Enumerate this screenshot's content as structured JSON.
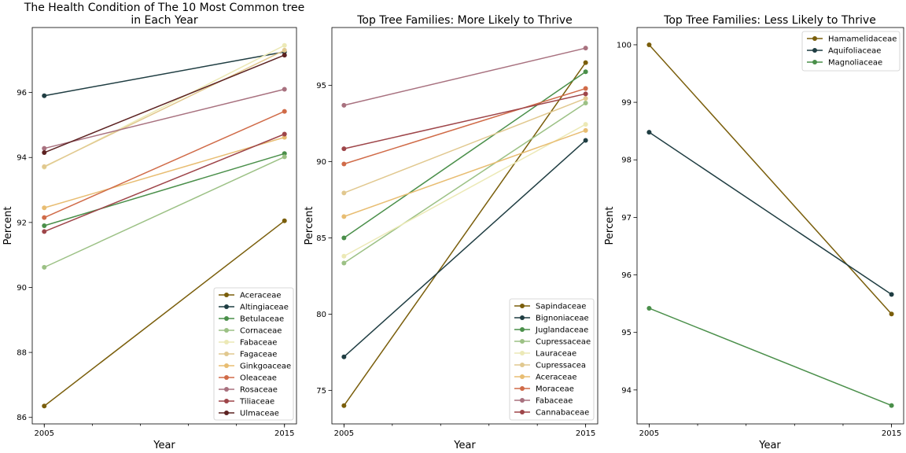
{
  "chart_data": [
    {
      "type": "line",
      "title": "The Health Condition of The 10 Most Common tree\nin Each Year",
      "xlabel": "Year",
      "ylabel": "Percent",
      "x": [
        2005,
        2015
      ],
      "xlim": [
        2004.5,
        2015.5
      ],
      "ylim": [
        85.8,
        98.0
      ],
      "yticks": [
        86,
        88,
        90,
        92,
        94,
        96
      ],
      "legend_loc": "lower-right",
      "series": [
        {
          "name": "Aceraceae",
          "color": "#7a5e0b",
          "values": [
            86.35,
            92.05
          ]
        },
        {
          "name": "Altingiaceae",
          "color": "#1f3d42",
          "values": [
            95.9,
            97.25
          ]
        },
        {
          "name": "Betulaceae",
          "color": "#4a8f4a",
          "values": [
            91.9,
            94.12
          ]
        },
        {
          "name": "Cornaceae",
          "color": "#9cc185",
          "values": [
            90.62,
            94.02
          ]
        },
        {
          "name": "Fabaceae",
          "color": "#ece9b6",
          "values": [
            93.7,
            97.45
          ]
        },
        {
          "name": "Fagaceae",
          "color": "#e1c88f",
          "values": [
            93.72,
            97.3
          ]
        },
        {
          "name": "Ginkgoaceae",
          "color": "#e8bd72",
          "values": [
            92.45,
            94.62
          ]
        },
        {
          "name": "Oleaceae",
          "color": "#d06b48",
          "values": [
            92.15,
            95.42
          ]
        },
        {
          "name": "Rosaceae",
          "color": "#a8717f",
          "values": [
            94.28,
            96.1
          ]
        },
        {
          "name": "Tiliaceae",
          "color": "#9e4549",
          "values": [
            91.72,
            94.72
          ]
        },
        {
          "name": "Ulmaceae",
          "color": "#5c2221",
          "values": [
            94.15,
            97.15
          ]
        }
      ]
    },
    {
      "type": "line",
      "title": "Top Tree Families: More Likely to Thrive",
      "xlabel": "Year",
      "ylabel": "Percent",
      "x": [
        2005,
        2015
      ],
      "xlim": [
        2004.5,
        2015.5
      ],
      "ylim": [
        72.8,
        98.8
      ],
      "yticks": [
        75,
        80,
        85,
        90,
        95
      ],
      "legend_loc": "lower-right",
      "series": [
        {
          "name": "Sapindaceae",
          "color": "#7a5e0b",
          "values": [
            74.0,
            96.5
          ]
        },
        {
          "name": "Bignoniaceae",
          "color": "#1f3d42",
          "values": [
            77.2,
            91.4
          ]
        },
        {
          "name": "Juglandaceae",
          "color": "#4a8f4a",
          "values": [
            85.0,
            95.9
          ]
        },
        {
          "name": "Cupressaceae",
          "color": "#9cc185",
          "values": [
            83.35,
            93.85
          ]
        },
        {
          "name": "Lauraceae",
          "color": "#ece9b6",
          "values": [
            83.8,
            92.45
          ]
        },
        {
          "name": "Cupressacea",
          "color": "#e1c88f",
          "values": [
            87.95,
            94.15
          ]
        },
        {
          "name": "Aceraceae",
          "color": "#e8bd72",
          "values": [
            86.4,
            92.05
          ]
        },
        {
          "name": "Moraceae",
          "color": "#d06b48",
          "values": [
            89.85,
            94.8
          ]
        },
        {
          "name": "Fabaceae",
          "color": "#a8717f",
          "values": [
            93.7,
            97.45
          ]
        },
        {
          "name": "Cannabaceae",
          "color": "#9e4549",
          "values": [
            90.85,
            94.45
          ]
        }
      ]
    },
    {
      "type": "line",
      "title": "Top Tree Families: Less Likely to Thrive",
      "xlabel": "Year",
      "ylabel": "Percent",
      "x": [
        2005,
        2015
      ],
      "xlim": [
        2004.5,
        2015.5
      ],
      "ylim": [
        93.41,
        100.3
      ],
      "yticks": [
        94,
        95,
        96,
        97,
        98,
        99,
        100
      ],
      "legend_loc": "upper-right",
      "series": [
        {
          "name": "Hamamelidaceae",
          "color": "#7a5e0b",
          "values": [
            100.0,
            95.32
          ]
        },
        {
          "name": "Aquifoliaceae",
          "color": "#1f3d42",
          "values": [
            98.48,
            95.66
          ]
        },
        {
          "name": "Magnoliaceae",
          "color": "#4a8f4a",
          "values": [
            95.42,
            93.73
          ]
        }
      ]
    }
  ]
}
